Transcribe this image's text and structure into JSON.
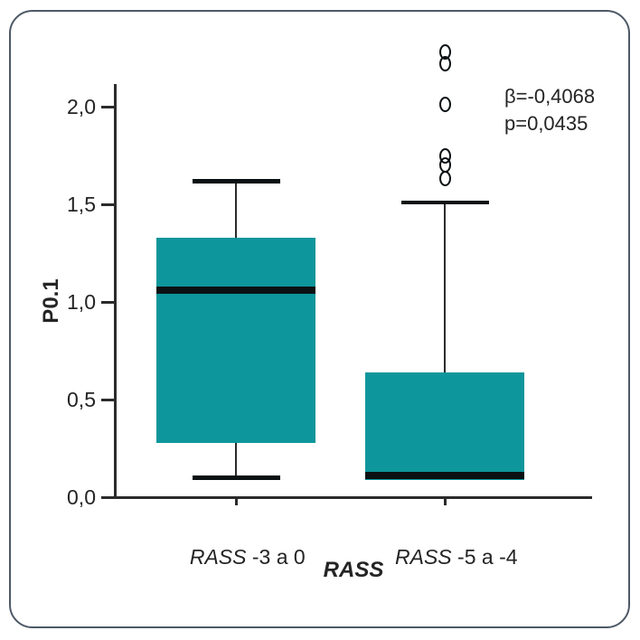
{
  "figure": {
    "border_color": "#4d5966",
    "background": "#ffffff"
  },
  "chart_data": {
    "type": "boxplot",
    "title": "",
    "ylabel": "P0.1",
    "xlabel": "RASS",
    "ylim": [
      0,
      2.12
    ],
    "grid": false,
    "legend": null,
    "yticks": [
      {
        "label": "0,0",
        "value": 0
      },
      {
        "label": "0,5",
        "value": 0.5
      },
      {
        "label": "1,0",
        "value": 1.0
      },
      {
        "label": "1,5",
        "value": 1.5
      },
      {
        "label": "2,0",
        "value": 2.0
      }
    ],
    "annotation_lines": [
      "β=-0,4068",
      "p=0,0435"
    ],
    "boxes": [
      {
        "label": {
          "italic": "RASS",
          "rest": " -3 a 0"
        },
        "q1": 0.28,
        "median": 1.06,
        "q3": 1.33,
        "whisker_low": 0.1,
        "whisker_high": 1.62,
        "outliers": []
      },
      {
        "label": {
          "italic": "RASS",
          "rest": " -5 a -4"
        },
        "q1": 0.09,
        "median": 0.11,
        "q3": 0.64,
        "whisker_low": null,
        "whisker_high": 1.51,
        "outliers": [
          1.63,
          1.7,
          1.75,
          2.01,
          2.22,
          2.28
        ]
      }
    ],
    "colors": {
      "box_fill": "#0D969B",
      "median": "#0b1113",
      "line": "#2b2b2b",
      "text": "#242424"
    }
  }
}
